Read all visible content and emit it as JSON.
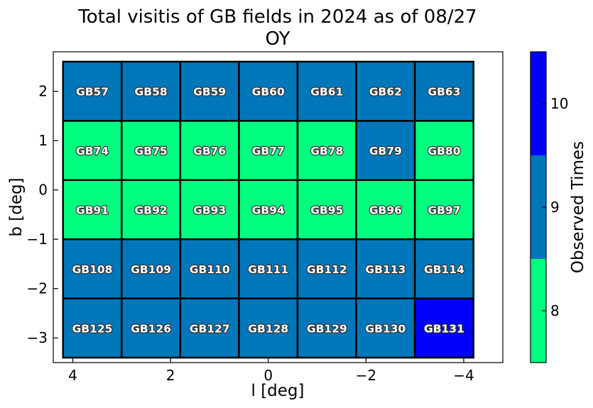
{
  "chart_data": {
    "type": "heatmap",
    "title": "Total visitis of GB fields in 2024 as of 08/27",
    "subtitle": "OY",
    "xlabel": "l [deg]",
    "ylabel": "b [deg]",
    "x_ticks": [
      "4",
      "2",
      "0",
      "−2",
      "−4"
    ],
    "x_tick_values": [
      4,
      2,
      0,
      -2,
      -4
    ],
    "y_ticks": [
      "−3",
      "−2",
      "−1",
      "0",
      "1",
      "2"
    ],
    "y_tick_values": [
      -3,
      -2,
      -1,
      0,
      1,
      2
    ],
    "xlim": [
      4.4,
      -4.8
    ],
    "ylim": [
      -3.5,
      2.8
    ],
    "field_l_centers": [
      3.6,
      2.4,
      1.2,
      0.0,
      -1.2,
      -2.4,
      -3.6
    ],
    "field_b_centers": [
      2.0,
      0.8,
      -0.4,
      -1.6,
      -2.8
    ],
    "field_l_width": 1.2,
    "field_b_height": 1.2,
    "rows": [
      {
        "b": 2.0,
        "fields": [
          "GB57",
          "GB58",
          "GB59",
          "GB60",
          "GB61",
          "GB62",
          "GB63"
        ],
        "values": [
          9,
          9,
          9,
          9,
          9,
          9,
          9
        ]
      },
      {
        "b": 0.8,
        "fields": [
          "GB74",
          "GB75",
          "GB76",
          "GB77",
          "GB78",
          "GB79",
          "GB80"
        ],
        "values": [
          8,
          8,
          8,
          8,
          8,
          9,
          8
        ]
      },
      {
        "b": -0.4,
        "fields": [
          "GB91",
          "GB92",
          "GB93",
          "GB94",
          "GB95",
          "GB96",
          "GB97"
        ],
        "values": [
          8,
          8,
          8,
          8,
          8,
          8,
          8
        ]
      },
      {
        "b": -1.6,
        "fields": [
          "GB108",
          "GB109",
          "GB110",
          "GB111",
          "GB112",
          "GB113",
          "GB114"
        ],
        "values": [
          9,
          9,
          9,
          9,
          9,
          9,
          9
        ]
      },
      {
        "b": -2.8,
        "fields": [
          "GB125",
          "GB126",
          "GB127",
          "GB128",
          "GB129",
          "GB130",
          "GB131"
        ],
        "values": [
          9,
          9,
          9,
          9,
          9,
          9,
          10
        ]
      }
    ],
    "colorbar": {
      "label": "Observed Times",
      "levels": [
        8,
        9,
        10
      ],
      "tick_labels": [
        "8",
        "9",
        "10"
      ],
      "colors": [
        "#00ff7f",
        "#0077bb",
        "#0000ff"
      ]
    },
    "grid": false
  }
}
